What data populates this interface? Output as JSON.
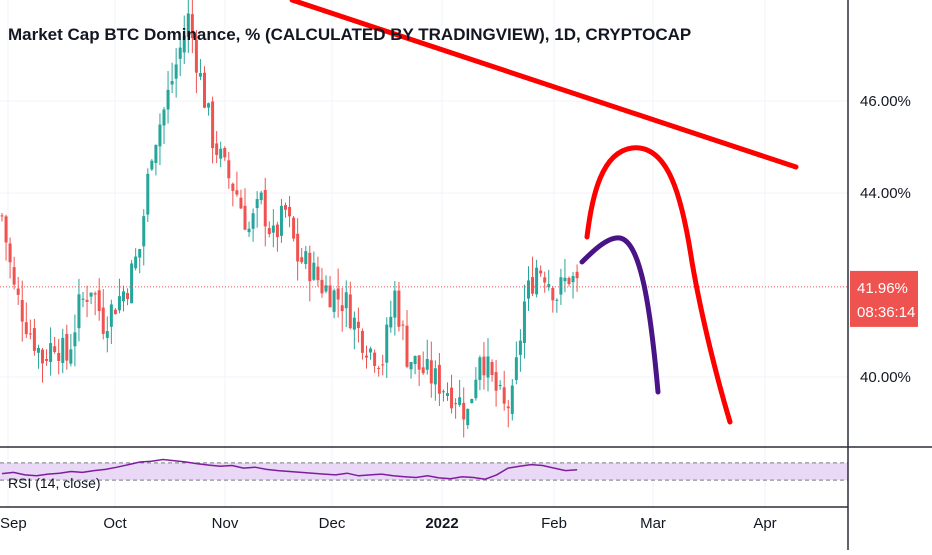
{
  "chart_data": {
    "type": "candlestick",
    "title": "Market Cap BTC Dominance, % (CALCULATED BY TRADINGVIEW), 1D, CRYPTOCAP",
    "y_axis": {
      "unit": "%",
      "range": [
        38.5,
        48.2
      ],
      "ticks": [
        "46.00%",
        "44.00%",
        "40.00%"
      ],
      "tick_values": [
        46,
        44,
        40
      ]
    },
    "x_axis": {
      "labels": [
        {
          "text": "Sep",
          "bold": false
        },
        {
          "text": "Oct",
          "bold": false
        },
        {
          "text": "Nov",
          "bold": false
        },
        {
          "text": "Dec",
          "bold": false
        },
        {
          "text": "2022",
          "bold": true
        },
        {
          "text": "Feb",
          "bold": false
        },
        {
          "text": "Mar",
          "bold": false
        },
        {
          "text": "Apr",
          "bold": false
        }
      ]
    },
    "current_price": {
      "value": "41.96%",
      "timer": "08:36:14",
      "level": 41.96
    },
    "colors": {
      "up": "#26a69a",
      "down": "#ef5350",
      "drawing_red": "#ff0000",
      "drawing_purple": "#4a1486",
      "rsi": "#7e1e9c",
      "rsi_band": "#e9d8f6"
    },
    "anchors": [
      [
        0,
        43.5
      ],
      [
        3,
        41.9
      ],
      [
        6,
        41.2
      ],
      [
        10,
        40.4
      ],
      [
        13,
        40.8
      ],
      [
        16,
        40.4
      ],
      [
        19,
        41.5
      ],
      [
        22,
        42.0
      ],
      [
        25,
        41.2
      ],
      [
        28,
        41.6
      ],
      [
        31,
        42.0
      ],
      [
        34,
        42.8
      ],
      [
        37,
        45.0
      ],
      [
        40,
        45.8
      ],
      [
        43,
        46.8
      ],
      [
        46,
        47.8
      ],
      [
        49,
        46.5
      ],
      [
        52,
        45.2
      ],
      [
        55,
        44.5
      ],
      [
        58,
        44.0
      ],
      [
        61,
        43.2
      ],
      [
        64,
        43.8
      ],
      [
        67,
        43.0
      ],
      [
        70,
        43.6
      ],
      [
        73,
        42.6
      ],
      [
        76,
        42.4
      ],
      [
        79,
        42.0
      ],
      [
        82,
        41.8
      ],
      [
        85,
        41.6
      ],
      [
        88,
        41.0
      ],
      [
        91,
        40.6
      ],
      [
        94,
        40.4
      ],
      [
        97,
        41.8
      ],
      [
        100,
        40.5
      ],
      [
        103,
        40.2
      ],
      [
        106,
        40.0
      ],
      [
        109,
        39.8
      ],
      [
        112,
        39.6
      ],
      [
        115,
        39.2
      ],
      [
        118,
        40.6
      ],
      [
        121,
        39.9
      ],
      [
        124,
        39.3
      ],
      [
        126,
        39.5
      ],
      [
        129,
        41.6
      ],
      [
        132,
        42.4
      ],
      [
        134,
        42.3
      ],
      [
        137,
        41.8
      ],
      [
        140,
        42.2
      ],
      [
        142,
        42.0
      ]
    ],
    "rsi": {
      "label": "RSI (14, close)",
      "upper": 70,
      "lower": 30,
      "values": [
        45,
        48,
        42,
        40,
        44,
        46,
        50,
        48,
        52,
        55,
        60,
        66,
        72,
        74,
        78,
        75,
        72,
        68,
        65,
        62,
        64,
        58,
        60,
        55,
        52,
        50,
        48,
        46,
        44,
        42,
        46,
        40,
        42,
        44,
        40,
        38,
        36,
        40,
        35,
        33,
        38,
        36,
        32,
        42,
        58,
        62,
        66,
        64,
        58,
        52,
        54
      ]
    }
  }
}
